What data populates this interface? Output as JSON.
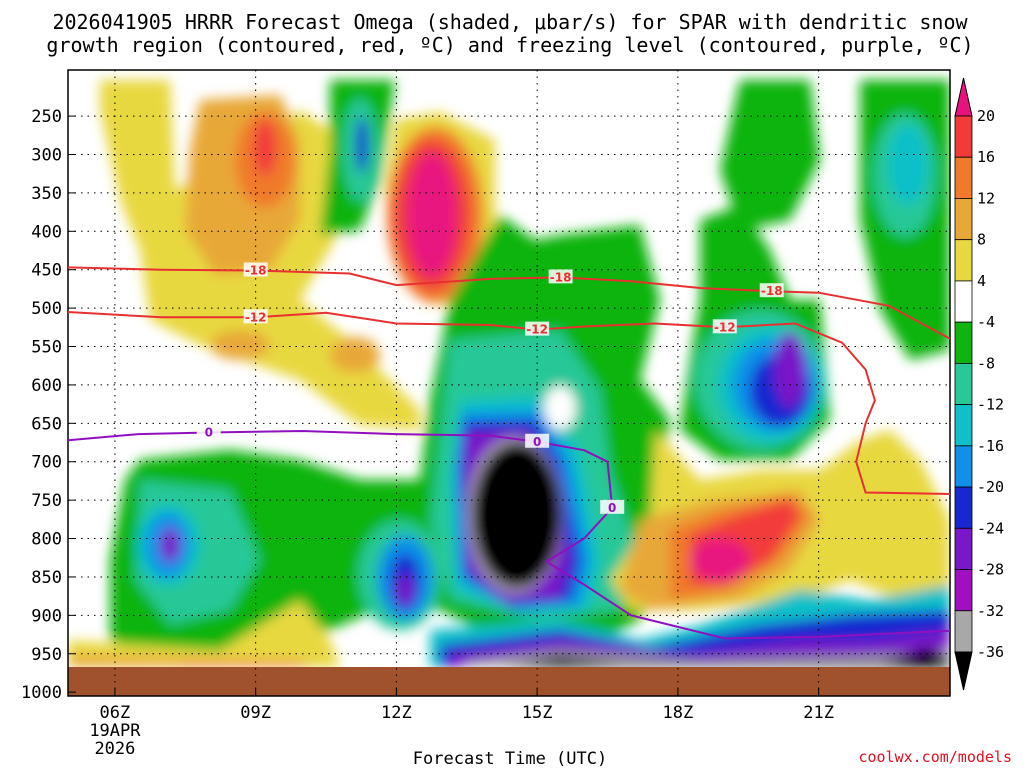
{
  "title": {
    "line1": "2026041905 HRRR Forecast Omega (shaded, μbar/s) for SPAR with dendritic snow",
    "line2": "growth region (contoured, red, ºC) and freezing level (contoured, purple, ºC)"
  },
  "credit": "coolwx.com/models",
  "chart_data": {
    "type": "heatmap",
    "xlabel": "Forecast Time (UTC)",
    "ylabel": "",
    "x_ticks": [
      {
        "label": "06Z",
        "hour": 6
      },
      {
        "label": "09Z",
        "hour": 9
      },
      {
        "label": "12Z",
        "hour": 12
      },
      {
        "label": "15Z",
        "hour": 15
      },
      {
        "label": "18Z",
        "hour": 18
      },
      {
        "label": "21Z",
        "hour": 21
      }
    ],
    "x_date_label": [
      "19APR",
      "2026"
    ],
    "xlim": [
      5,
      23.8
    ],
    "y_ticks": [
      "250",
      "300",
      "350",
      "400",
      "450",
      "500",
      "550",
      "600",
      "650",
      "700",
      "750",
      "800",
      "850",
      "900",
      "950",
      "1000"
    ],
    "y_tick_values": [
      250,
      300,
      350,
      400,
      450,
      500,
      550,
      600,
      650,
      700,
      750,
      800,
      850,
      900,
      950,
      1000
    ],
    "ylim": [
      1005,
      190
    ],
    "colorbar_labels": [
      "20",
      "16",
      "12",
      "8",
      "4",
      "-4",
      "-8",
      "-12",
      "-16",
      "-20",
      "-24",
      "-28",
      "-32",
      "-36"
    ],
    "colorbar_colors": [
      "#e8127f",
      "#f23a3a",
      "#f07a2a",
      "#e8a838",
      "#e8d840",
      "#ffffff",
      "#10b410",
      "#28c898",
      "#10c0c8",
      "#1090e8",
      "#1828d0",
      "#7818c8",
      "#a010c0",
      "#a8a8a8",
      "#000000"
    ],
    "contours": [
      {
        "label": "-18",
        "color": "#e83030",
        "points": [
          [
            5,
            447
          ],
          [
            7,
            450
          ],
          [
            9,
            451
          ],
          [
            11,
            455
          ],
          [
            12,
            470
          ],
          [
            14,
            462
          ],
          [
            15.5,
            460
          ],
          [
            17,
            465
          ],
          [
            18.5,
            474
          ],
          [
            20,
            478
          ],
          [
            21,
            480
          ],
          [
            22.5,
            497
          ],
          [
            23.8,
            540
          ]
        ]
      },
      {
        "label": "-12",
        "color": "#e83030",
        "points": [
          [
            5,
            505
          ],
          [
            7,
            512
          ],
          [
            9,
            512
          ],
          [
            10.5,
            506
          ],
          [
            12,
            520
          ],
          [
            14,
            522
          ],
          [
            15,
            528
          ],
          [
            16,
            524
          ],
          [
            17.5,
            520
          ],
          [
            19,
            525
          ],
          [
            20.5,
            520
          ],
          [
            21.5,
            545
          ],
          [
            22,
            580
          ],
          [
            22.2,
            620
          ],
          [
            22,
            650
          ],
          [
            21.8,
            700
          ],
          [
            22,
            740
          ],
          [
            23.8,
            742
          ]
        ]
      },
      {
        "label": "0",
        "color": "#9010c0",
        "points": [
          [
            5,
            672
          ],
          [
            6.5,
            664
          ],
          [
            8,
            662
          ],
          [
            10,
            660
          ],
          [
            12,
            664
          ],
          [
            14,
            666
          ],
          [
            15,
            674
          ],
          [
            16,
            685
          ],
          [
            16.5,
            700
          ],
          [
            16.6,
            760
          ],
          [
            16,
            800
          ],
          [
            15.2,
            830
          ],
          [
            16,
            860
          ],
          [
            17,
            900
          ],
          [
            19,
            930
          ],
          [
            21,
            928
          ],
          [
            23.8,
            920
          ]
        ]
      }
    ]
  }
}
